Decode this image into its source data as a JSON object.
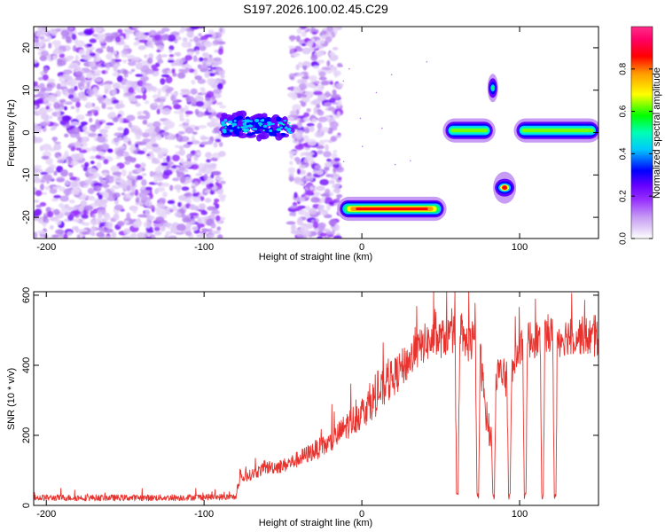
{
  "chart_data": [
    {
      "type": "heatmap",
      "title": "S197.2026.100.02.45.C29",
      "xlabel": "Height of straight line (km)",
      "ylabel": "Frequency (Hz)",
      "xlim": [
        -208,
        150
      ],
      "ylim": [
        -25,
        25
      ],
      "xticks": [
        -200,
        -100,
        0,
        100
      ],
      "yticks": [
        -20,
        -10,
        0,
        10,
        20
      ],
      "colorbar": {
        "label": "Normalized spectral amplitude",
        "range": [
          0,
          1
        ],
        "ticks": [
          "0.0",
          "0.2",
          "0.4",
          "0.6",
          "0.8"
        ],
        "colors": [
          "#ffffff",
          "#c69cf4",
          "#9932ff",
          "#6600ff",
          "#0000ff",
          "#00c8ff",
          "#00ffb4",
          "#00ff00",
          "#ffff00",
          "#ff9900",
          "#ff0000",
          "#ff0066",
          "#ff2d8a"
        ]
      },
      "features": [
        {
          "name": "noise-region-left",
          "x_range": [
            -208,
            -88
          ],
          "freq_range": [
            -25,
            25
          ],
          "level": "low"
        },
        {
          "name": "noise-region-middle",
          "x_range": [
            -45,
            -14
          ],
          "freq_range": [
            -25,
            25
          ],
          "level": "low"
        },
        {
          "name": "signal-cluster-A",
          "x_range": [
            -88,
            -45
          ],
          "freq_center": 0,
          "freq_halfwidth": 3,
          "level": "medium"
        },
        {
          "name": "signal-band-B",
          "x_range": [
            -14,
            52
          ],
          "freq_center": -18,
          "freq_halfwidth": 1.5,
          "level": "high"
        },
        {
          "name": "signal-band-C",
          "x_range": [
            53,
            83
          ],
          "freq_center": 0.5,
          "freq_halfwidth": 1.5,
          "level": "medium"
        },
        {
          "name": "signal-spot-D",
          "x_range": [
            81,
            85
          ],
          "freq_center": 10.5,
          "freq_halfwidth": 2,
          "level": "medium"
        },
        {
          "name": "signal-spot-E",
          "x_range": [
            86,
            95
          ],
          "freq_center": -13,
          "freq_halfwidth": 2,
          "level": "high"
        },
        {
          "name": "signal-band-F",
          "x_range": [
            98,
            150
          ],
          "freq_center": 0.5,
          "freq_halfwidth": 1.5,
          "level": "medium"
        }
      ]
    },
    {
      "type": "line",
      "xlabel": "Height of straight line (km)",
      "ylabel": "SNR (10 * v/v)",
      "xlim": [
        -208,
        150
      ],
      "ylim": [
        0,
        610
      ],
      "xticks": [
        -200,
        -100,
        0,
        100
      ],
      "yticks": [
        0,
        200,
        400,
        600
      ],
      "series": [
        {
          "name": "SNR",
          "color": "#e8322d",
          "x": [
            -208,
            -180,
            -150,
            -120,
            -100,
            -80,
            -77,
            -70,
            -60,
            -50,
            -40,
            -30,
            -20,
            -10,
            0,
            10,
            20,
            30,
            40,
            50,
            55,
            59,
            60,
            61,
            62,
            64,
            70,
            72,
            73,
            74,
            75,
            80,
            82,
            83,
            84,
            85,
            90,
            92,
            93,
            94,
            95,
            100,
            102,
            103,
            104,
            105,
            110,
            113,
            114,
            115,
            116,
            121,
            122,
            123,
            124,
            130,
            140,
            150
          ],
          "y": [
            20,
            20,
            20,
            20,
            22,
            22,
            75,
            90,
            110,
            115,
            135,
            160,
            180,
            230,
            270,
            320,
            370,
            420,
            470,
            480,
            490,
            495,
            25,
            25,
            490,
            470,
            470,
            470,
            25,
            25,
            430,
            210,
            200,
            25,
            25,
            385,
            370,
            360,
            25,
            25,
            380,
            460,
            470,
            25,
            25,
            480,
            480,
            480,
            25,
            25,
            490,
            490,
            25,
            25,
            480,
            490,
            490,
            480
          ]
        }
      ]
    }
  ]
}
